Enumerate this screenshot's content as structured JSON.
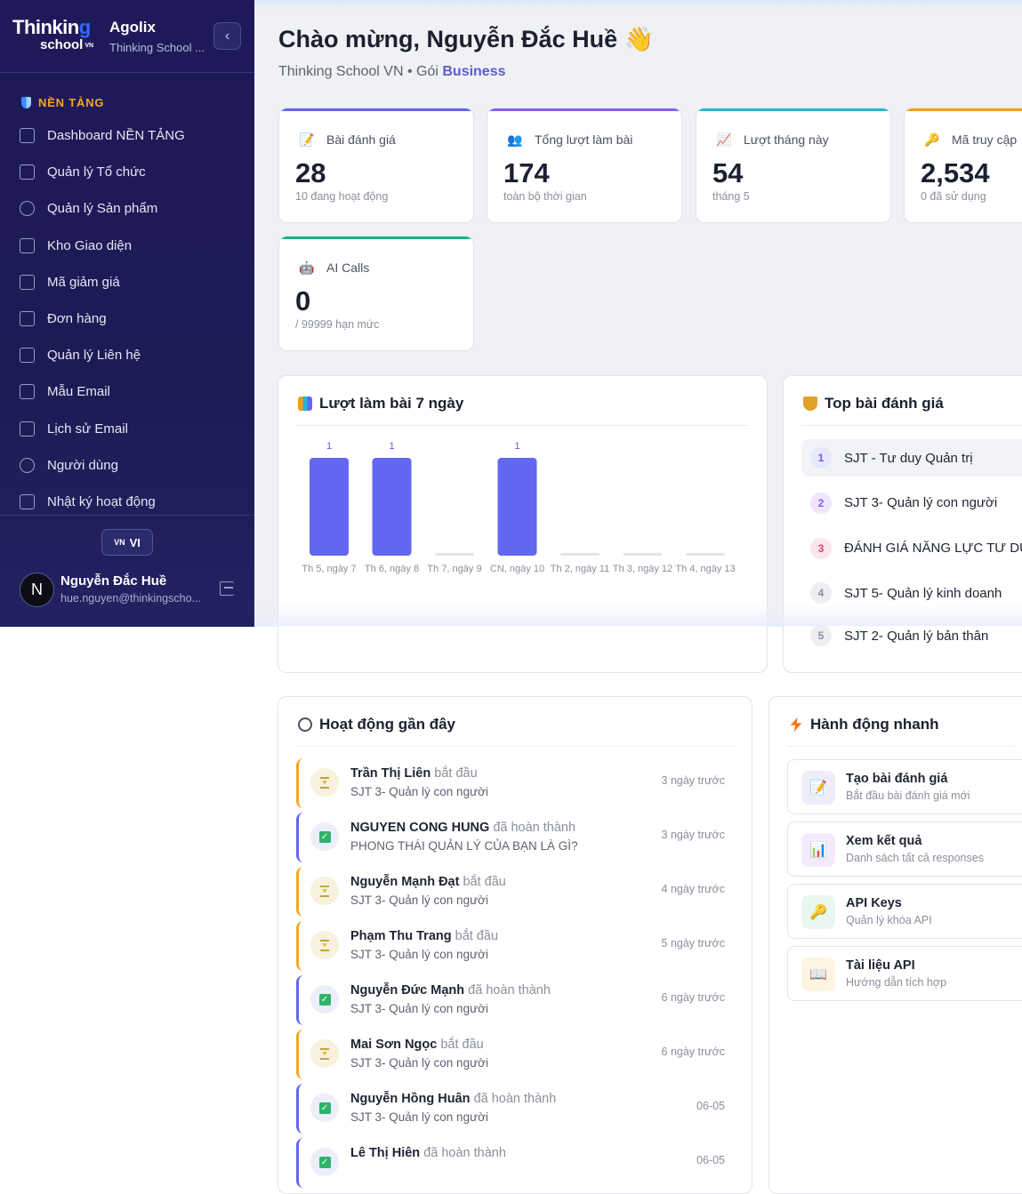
{
  "sidebar": {
    "brand_top": "Thinkin",
    "brand_top_g": "g",
    "brand_bottom": "school",
    "brand_vn": "VN",
    "app_name": "Agolix",
    "org_name": "Thinking School ...",
    "section_title": "NỀN TẢNG",
    "items": [
      {
        "label": "Dashboard NỀN TẢNG",
        "icon": "dashboard-grid-icon"
      },
      {
        "label": "Quản lý Tổ chức",
        "icon": "building-icon"
      },
      {
        "label": "Quản lý Sản phẩm",
        "icon": "box-icon"
      },
      {
        "label": "Kho Giao diện",
        "icon": "document-icon"
      },
      {
        "label": "Mã giảm giá",
        "icon": "credit-card-icon"
      },
      {
        "label": "Đơn hàng",
        "icon": "cart-icon"
      },
      {
        "label": "Quản lý Liên hệ",
        "icon": "phone-icon"
      },
      {
        "label": "Mẫu Email",
        "icon": "mail-icon"
      },
      {
        "label": "Lịch sử Email",
        "icon": "mail-history-icon"
      },
      {
        "label": "Người dùng",
        "icon": "user-icon"
      },
      {
        "label": "Nhật ký hoạt động",
        "icon": "list-icon"
      }
    ],
    "lang_flag": "VN",
    "lang": "VI",
    "user_initial": "N",
    "user_name": "Nguyễn Đắc Huề",
    "user_email": "hue.nguyen@thinkingscho..."
  },
  "header": {
    "welcome": "Chào mừng, Nguyễn Đắc Huề 👋",
    "org": "Thinking School VN • Gói ",
    "plan": "Business"
  },
  "stats": [
    {
      "label": "Bài đánh giá",
      "value": "28",
      "hint": "10 đang hoạt động",
      "icon": "memo-icon",
      "color": "#6366f1"
    },
    {
      "label": "Tổng lượt làm bài",
      "value": "174",
      "hint": "toàn bộ thời gian",
      "icon": "users-icon",
      "color": "#8b5cf6"
    },
    {
      "label": "Lượt tháng này",
      "value": "54",
      "hint": "tháng 5",
      "icon": "trend-chart-icon",
      "color": "#22b8cf"
    },
    {
      "label": "Mã truy cập",
      "value": "2,534",
      "hint": "0 đã sử dụng",
      "icon": "key-icon",
      "color": "#f59e0b"
    },
    {
      "label": "AI Calls",
      "value": "0",
      "hint": "/ 99999 hạn mức",
      "icon": "robot-icon",
      "color": "#10b981"
    }
  ],
  "chart_card": {
    "title": "Lượt làm bài 7 ngày"
  },
  "chart_data": {
    "type": "bar",
    "categories": [
      "Th 5, ngày 7",
      "Th 6, ngày 8",
      "Th 7, ngày 9",
      "CN, ngày 10",
      "Th 2, ngày 11",
      "Th 3, ngày 12",
      "Th 4, ngày 13"
    ],
    "values": [
      1,
      1,
      0,
      1,
      0,
      0,
      0
    ],
    "title": "Lượt làm bài 7 ngày",
    "xlabel": "",
    "ylabel": "",
    "color": "#6366f1",
    "grid": false
  },
  "top_card": {
    "title": "Top bài đánh giá",
    "items": [
      {
        "rank": "1",
        "label": "SJT - Tư duy Quản trị",
        "color": "#6366f1",
        "bg": "#e7e8fb"
      },
      {
        "rank": "2",
        "label": "SJT 3- Quản lý con người",
        "color": "#8b5cf6",
        "bg": "#efe6fb"
      },
      {
        "rank": "3",
        "label": "ĐÁNH GIÁ NĂNG LỰC TƯ DU",
        "color": "#e0457b",
        "bg": "#fbe5ec"
      },
      {
        "rank": "4",
        "label": "SJT 5- Quản lý kinh doanh",
        "color": "#8b8f9c",
        "bg": "#eceef2"
      },
      {
        "rank": "5",
        "label": "SJT 2- Quản lý bản thân",
        "color": "#8b8f9c",
        "bg": "#eceef2"
      }
    ]
  },
  "activity": {
    "title": "Hoạt động gần đây",
    "items": [
      {
        "name": "Trần Thị Liên",
        "verb": "bắt đầu",
        "sub": "SJT 3- Quản lý con người",
        "time": "3 ngày trước",
        "done": false
      },
      {
        "name": "NGUYEN CONG HUNG",
        "verb": "đã hoàn thành",
        "sub": "PHONG THÁI QUẢN LÝ CỦA BẠN LÀ GÌ?",
        "time": "3 ngày trước",
        "done": true
      },
      {
        "name": "Nguyễn Mạnh Đạt",
        "verb": "bắt đầu",
        "sub": "SJT 3- Quản lý con người",
        "time": "4 ngày trước",
        "done": false
      },
      {
        "name": "Phạm Thu Trang",
        "verb": "bắt đầu",
        "sub": "SJT 3- Quản lý con người",
        "time": "5 ngày trước",
        "done": false
      },
      {
        "name": "Nguyễn Đức Mạnh",
        "verb": "đã hoàn thành",
        "sub": "SJT 3- Quản lý con người",
        "time": "6 ngày trước",
        "done": true
      },
      {
        "name": "Mai Sơn Ngọc",
        "verb": "bắt đầu",
        "sub": "SJT 3- Quản lý con người",
        "time": "6 ngày trước",
        "done": false
      },
      {
        "name": "Nguyễn Hồng Huân",
        "verb": "đã hoàn thành",
        "sub": "SJT 3- Quản lý con người",
        "time": "06-05",
        "done": true
      },
      {
        "name": "Lê Thị Hiên",
        "verb": "đã hoàn thành",
        "sub": "",
        "time": "06-05",
        "done": true
      }
    ]
  },
  "quick_actions": {
    "title": "Hành động nhanh",
    "items": [
      {
        "title": "Tạo bài đánh giá",
        "sub": "Bắt đầu bài đánh giá mới",
        "icon": "memo-icon",
        "bg": "#eeeefb"
      },
      {
        "title": "Xem kết quả",
        "sub": "Danh sách tất cả responses",
        "icon": "bar-chart-icon",
        "bg": "#f3eafb"
      },
      {
        "title": "API Keys",
        "sub": "Quản lý khóa API",
        "icon": "key-icon",
        "bg": "#e8f7ef"
      },
      {
        "title": "Tài liệu API",
        "sub": "Hướng dẫn tích hợp",
        "icon": "book-icon",
        "bg": "#fdf5e2"
      }
    ]
  }
}
